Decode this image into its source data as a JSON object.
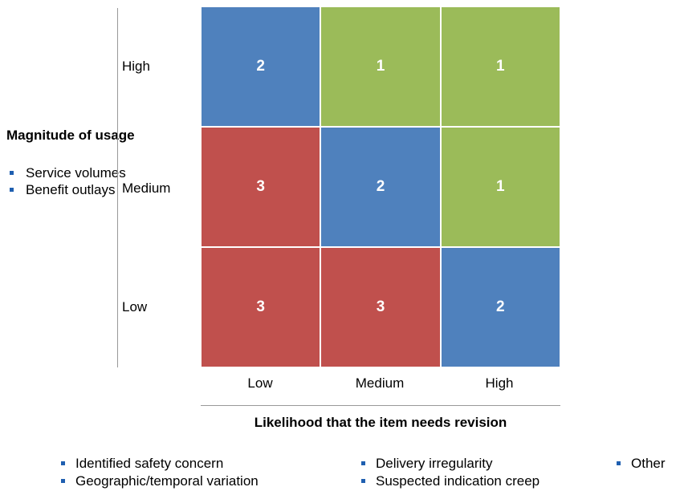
{
  "chart_data": {
    "type": "heatmap",
    "y_axis": {
      "title": "Magnitude of usage",
      "items": [
        "Service volumes",
        "Benefit outlays"
      ],
      "categories": [
        "High",
        "Medium",
        "Low"
      ]
    },
    "x_axis": {
      "title": "Likelihood that the item needs revision",
      "categories": [
        "Low",
        "Medium",
        "High"
      ]
    },
    "cells": [
      [
        {
          "value": "2",
          "color": "#4f81bd"
        },
        {
          "value": "1",
          "color": "#9bbb59"
        },
        {
          "value": "1",
          "color": "#9bbb59"
        }
      ],
      [
        {
          "value": "3",
          "color": "#c0504d"
        },
        {
          "value": "2",
          "color": "#4f81bd"
        },
        {
          "value": "1",
          "color": "#9bbb59"
        }
      ],
      [
        {
          "value": "3",
          "color": "#c0504d"
        },
        {
          "value": "3",
          "color": "#c0504d"
        },
        {
          "value": "2",
          "color": "#4f81bd"
        }
      ]
    ],
    "factors": [
      "Identified safety concern",
      "Delivery irregularity",
      "Other",
      "Geographic/temporal variation",
      "Suspected indication creep"
    ]
  }
}
